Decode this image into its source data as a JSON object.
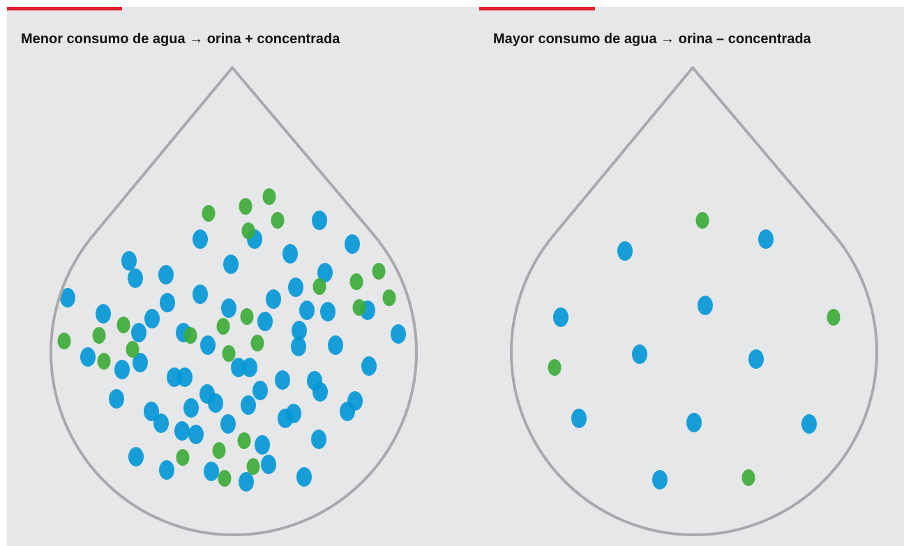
{
  "panels": [
    {
      "title": "Menor consumo de agua → orina + concentrada"
    },
    {
      "title": "Mayor consumo de agua → orina – concentrada"
    }
  ]
}
